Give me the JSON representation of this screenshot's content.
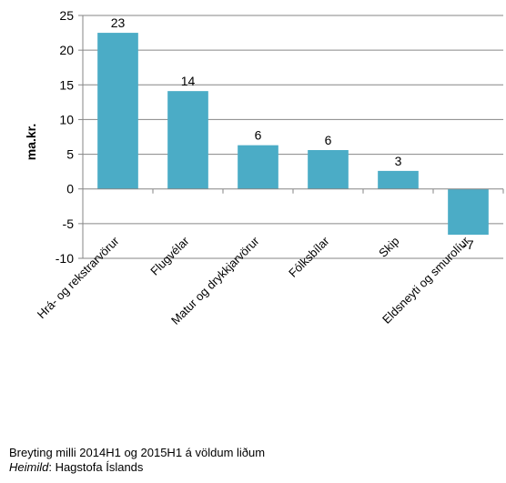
{
  "chart_data": {
    "type": "bar",
    "categories": [
      "Hrá- og rekstrarvörur",
      "Flugvélar",
      "Matur og drykkjarvörur",
      "Fólksbílar",
      "Skip",
      "Eldsneyti og smurolíur"
    ],
    "values": [
      22.5,
      14.1,
      6.3,
      5.6,
      2.6,
      -6.6
    ],
    "data_labels": [
      "23",
      "14",
      "6",
      "6",
      "3",
      "-7"
    ],
    "ylabel": "ma.kr.",
    "xlabel": "",
    "ylim": [
      -10,
      25
    ],
    "yticks": [
      -10,
      -5,
      0,
      5,
      10,
      15,
      20,
      25
    ],
    "grid": true,
    "bar_color": "#4bacc6",
    "grid_color": "#868686"
  },
  "caption": {
    "line1": "Breyting milli 2014H1 og 2015H1 á völdum liðum",
    "source_label": "Heimild",
    "source_text": ": Hagstofa Íslands"
  }
}
